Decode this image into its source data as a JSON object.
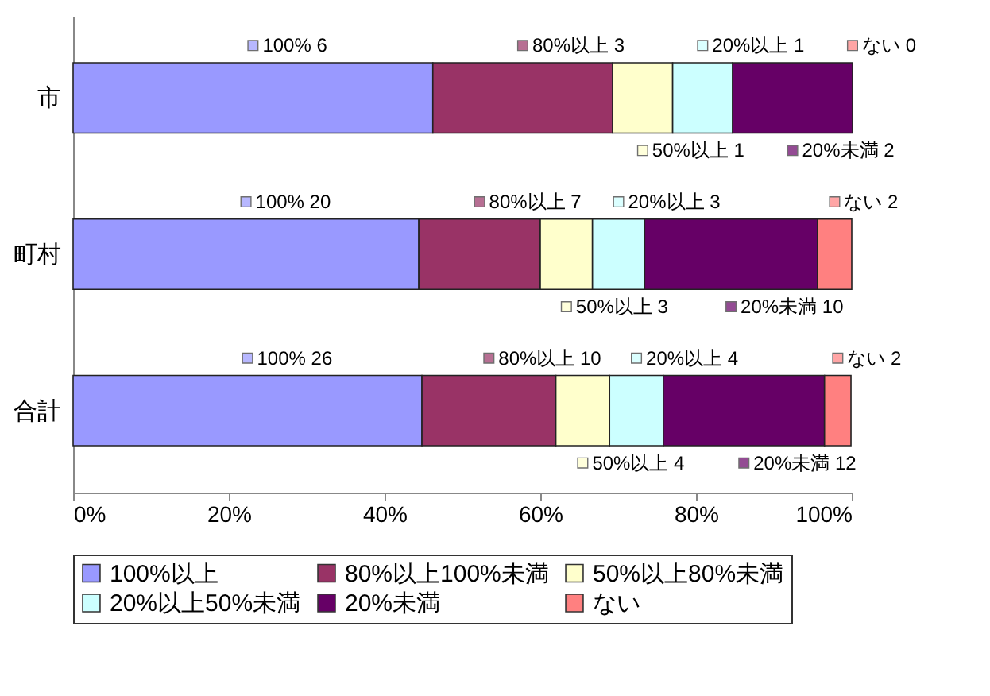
{
  "chart_data": {
    "type": "bar",
    "orientation": "horizontal",
    "stacked": true,
    "categories": [
      "市",
      "町村",
      "合計"
    ],
    "series": [
      {
        "name": "100%以上",
        "color": "#9999ff",
        "values": [
          46.2,
          44.4,
          44.8
        ]
      },
      {
        "name": "80%以上100%未満",
        "color": "#993366",
        "values": [
          23.1,
          15.6,
          17.2
        ]
      },
      {
        "name": "50%以上80%未満",
        "color": "#ffffcc",
        "values": [
          7.7,
          6.7,
          6.9
        ]
      },
      {
        "name": "20%以上50%未満",
        "color": "#ccffff",
        "values": [
          7.7,
          6.7,
          6.9
        ]
      },
      {
        "name": "20%未満",
        "color": "#660066",
        "values": [
          15.4,
          22.2,
          20.7
        ]
      },
      {
        "name": "ない",
        "color": "#ff8080",
        "values": [
          0,
          4.4,
          3.4
        ]
      }
    ],
    "annotations": [
      "100% 6",
      "80%以上 3",
      "50%以上 1",
      "20%以上 1",
      "20%未満 2",
      "ない 0",
      "100% 20",
      "80%以上 7",
      "50%以上 3",
      "20%以上 3",
      "20%未満 10",
      "ない 2",
      "100% 26",
      "80%以上 10",
      "50%以上 4",
      "20%以上 4",
      "20%未満 12",
      "ない 2"
    ],
    "xlim": [
      0,
      100
    ],
    "xticks": [
      {
        "value": 0,
        "label": "0%"
      },
      {
        "value": 20,
        "label": "20%"
      },
      {
        "value": 40,
        "label": "40%"
      },
      {
        "value": 60,
        "label": "60%"
      },
      {
        "value": 80,
        "label": "80%"
      },
      {
        "value": 100,
        "label": "100%"
      }
    ],
    "grid": false,
    "legend": "bottom"
  }
}
